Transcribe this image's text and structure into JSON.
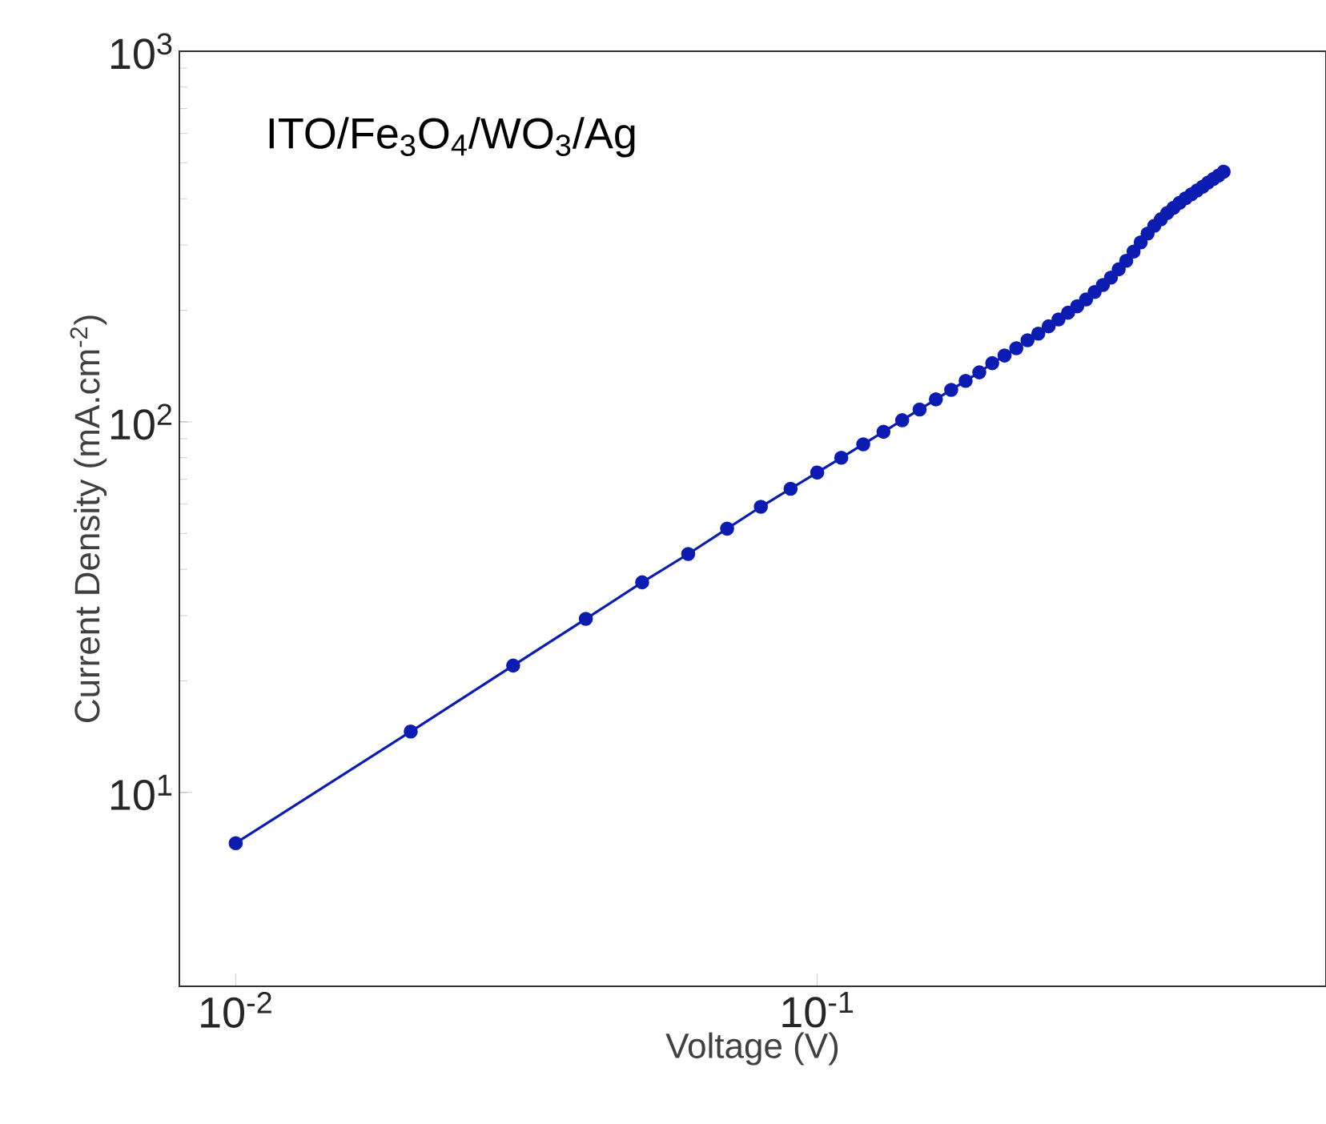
{
  "chart_data": {
    "type": "line",
    "xlabel": "Voltage (V)",
    "ylabel": "Current Density (mA.cm$^{-2}$)",
    "annotations": [
      "ITO/Fe$_{3}$O$_{4}$/WO$_{3}$/Ag"
    ],
    "log": "xy",
    "marker": "circle",
    "line_style": "solid",
    "xlim": [
      0.008,
      0.75
    ],
    "ylim": [
      3,
      1000
    ],
    "xticks": [
      {
        "value": 0.01,
        "label": "10$^{-2}$"
      },
      {
        "value": 0.1,
        "label": "10$^{-1}$"
      }
    ],
    "yticks": [
      {
        "value": 10,
        "label": "10$^{1}$"
      },
      {
        "value": 100,
        "label": "10$^{2}$"
      },
      {
        "value": 1000,
        "label": "10$^{3}$"
      }
    ],
    "x": [
      0.01,
      0.02,
      0.03,
      0.04,
      0.05,
      0.06,
      0.07,
      0.08,
      0.09,
      0.1,
      0.11,
      0.12,
      0.13,
      0.14,
      0.15,
      0.16,
      0.17,
      0.18,
      0.19,
      0.2,
      0.21,
      0.22,
      0.23,
      0.24,
      0.25,
      0.26,
      0.27,
      0.28,
      0.29,
      0.3,
      0.31,
      0.32,
      0.33,
      0.34,
      0.35,
      0.36,
      0.37,
      0.38,
      0.39,
      0.4,
      0.41,
      0.42,
      0.43,
      0.44,
      0.45,
      0.46,
      0.47,
      0.48,
      0.49,
      0.5
    ],
    "series": [
      {
        "color": "#0c1bb0",
        "values": [
          7.3,
          14.6,
          22,
          29.4,
          36.9,
          44,
          51.5,
          59,
          66,
          73,
          80,
          87,
          94,
          101,
          108,
          115,
          122,
          129,
          136,
          144,
          151,
          158,
          166,
          173,
          181,
          189,
          197,
          205,
          214,
          224,
          234,
          245,
          258,
          272,
          288,
          305,
          322,
          338,
          352,
          366,
          378,
          390,
          401,
          411,
          421,
          431,
          442,
          452,
          462,
          473
        ]
      }
    ]
  }
}
